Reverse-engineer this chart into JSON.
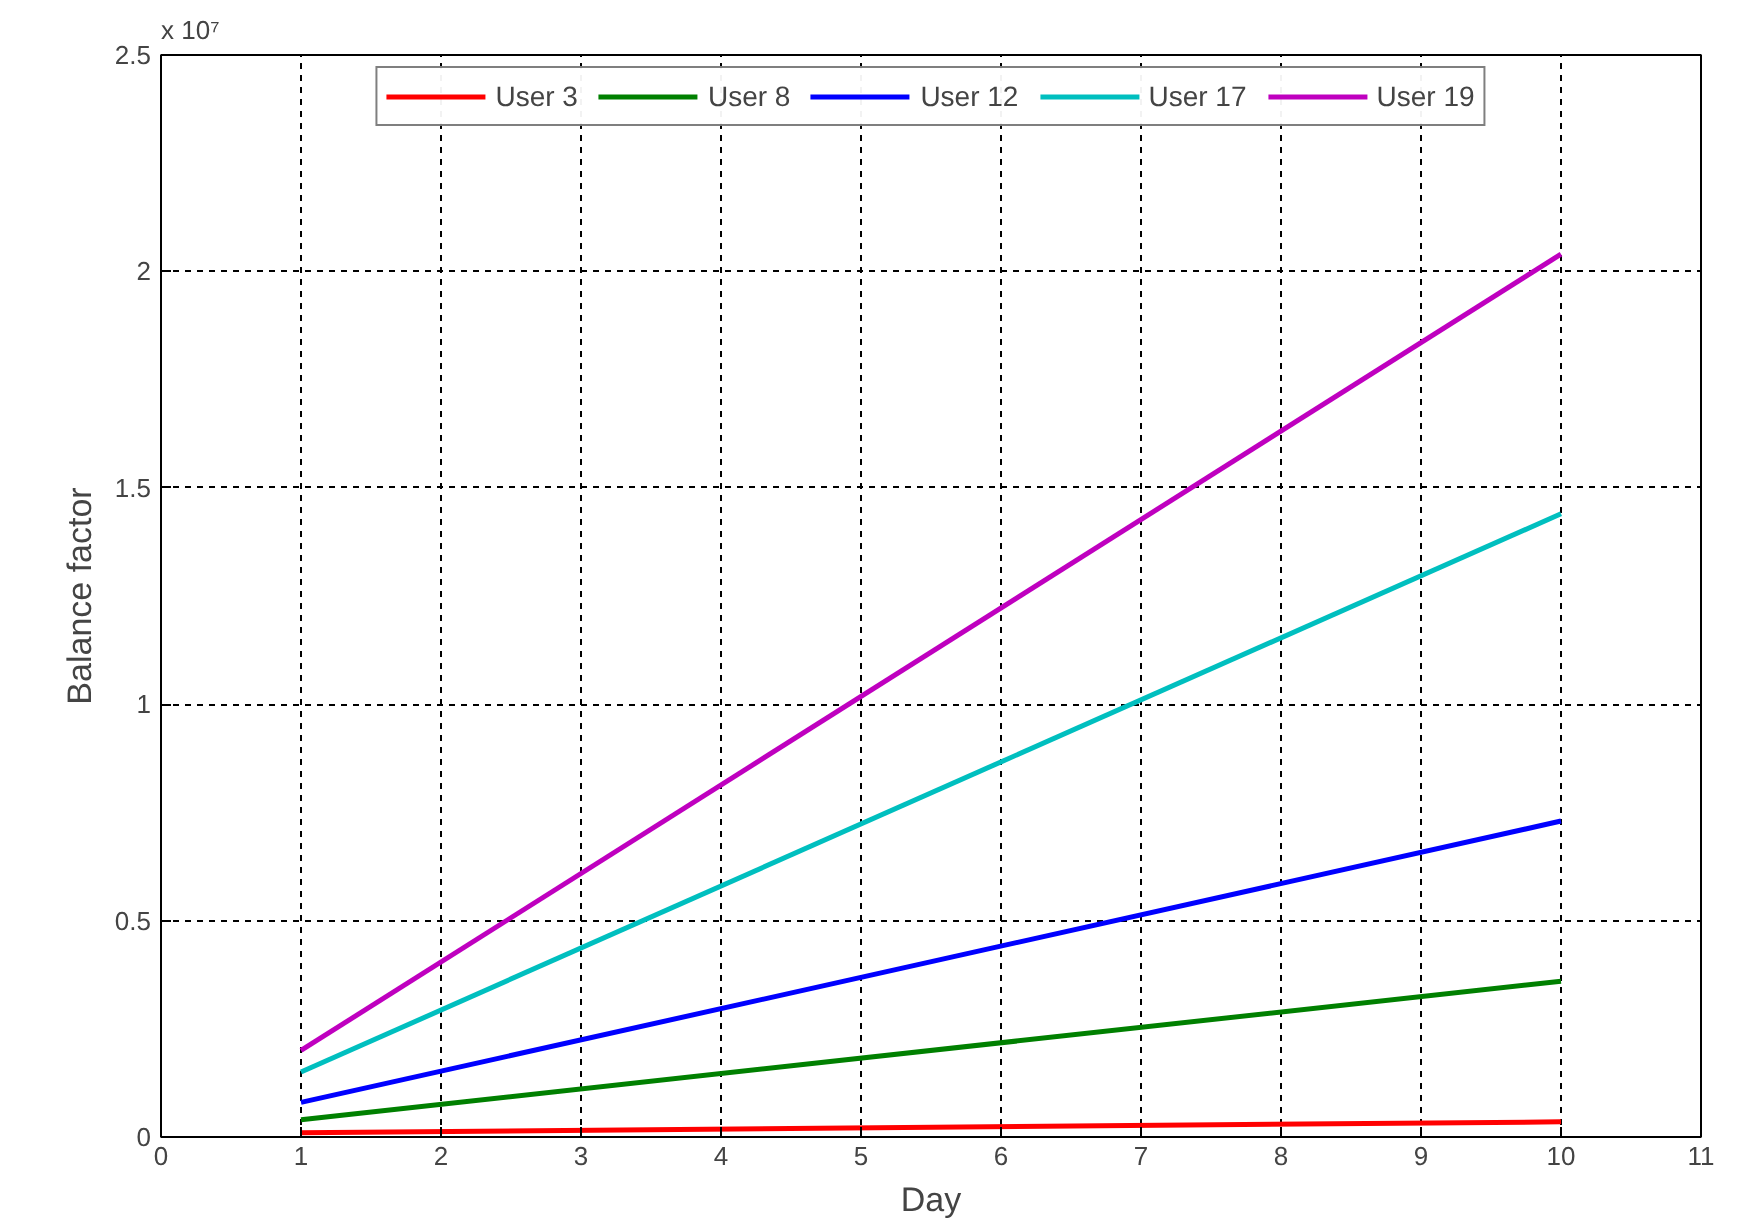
{
  "chart_data": {
    "type": "line",
    "xlabel": "Day",
    "ylabel": "Balance factor",
    "annotations": [
      "x 10⁷"
    ],
    "xlim": [
      0,
      11
    ],
    "xticks": [
      0,
      1,
      2,
      3,
      4,
      5,
      6,
      7,
      8,
      9,
      10,
      11
    ],
    "ylim": [
      0,
      2.5
    ],
    "yticks": [
      0,
      0.5,
      1,
      1.5,
      2,
      2.5
    ],
    "x": [
      1,
      10
    ],
    "series": [
      {
        "name": "User 3",
        "color": "#ff0000",
        "values": [
          0.01,
          0.035
        ]
      },
      {
        "name": "User 8",
        "color": "#008000",
        "values": [
          0.04,
          0.36
        ]
      },
      {
        "name": "User 12",
        "color": "#0000ff",
        "values": [
          0.08,
          0.73
        ]
      },
      {
        "name": "User 17",
        "color": "#00bfbf",
        "values": [
          0.15,
          1.44
        ]
      },
      {
        "name": "User 19",
        "color": "#bf00bf",
        "values": [
          0.2,
          2.04
        ]
      }
    ],
    "grid": true,
    "legend": "top",
    "marker": "none",
    "line_style": "solid"
  }
}
